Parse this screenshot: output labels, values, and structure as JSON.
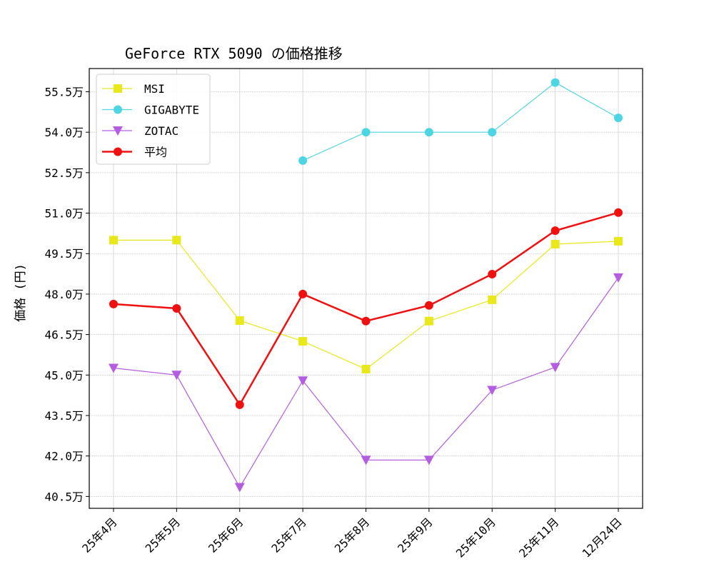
{
  "chart_data": {
    "type": "line",
    "title": "GeForce RTX 5090 の価格推移",
    "xlabel": "",
    "ylabel": "価格 (円)",
    "categories": [
      "25年4月",
      "25年5月",
      "25年6月",
      "25年7月",
      "25年8月",
      "25年9月",
      "25年10月",
      "25年11月",
      "12月24日"
    ],
    "yticks": [
      40.5,
      42.0,
      43.5,
      45.0,
      46.5,
      48.0,
      49.5,
      51.0,
      52.5,
      54.0,
      55.5
    ],
    "ytick_suffix": "万",
    "ylim": [
      40.06,
      56.36
    ],
    "grid": true,
    "legend_placement": "upper-left",
    "series": [
      {
        "name": "MSI",
        "color": "#e8e81a",
        "marker": "square",
        "linewidth": 1.2,
        "values": [
          50.0,
          50.0,
          47.02,
          46.25,
          45.22,
          47.0,
          47.79,
          49.85,
          49.96
        ]
      },
      {
        "name": "GIGABYTE",
        "color": "#4dd5e3",
        "marker": "circle",
        "linewidth": 1.2,
        "values": [
          null,
          null,
          null,
          52.95,
          54.0,
          54.0,
          54.0,
          55.84,
          54.53
        ]
      },
      {
        "name": "ZOTAC",
        "color": "#b45de0",
        "marker": "triangle-down",
        "linewidth": 1.2,
        "values": [
          45.26,
          45.0,
          40.84,
          44.79,
          41.85,
          41.85,
          44.44,
          45.29,
          48.61
        ]
      },
      {
        "name": "平均",
        "color": "#f01010",
        "marker": "circle",
        "linewidth": 2.5,
        "values": [
          47.63,
          47.47,
          43.9,
          48.0,
          47.0,
          47.58,
          48.74,
          50.35,
          51.02
        ]
      }
    ]
  }
}
